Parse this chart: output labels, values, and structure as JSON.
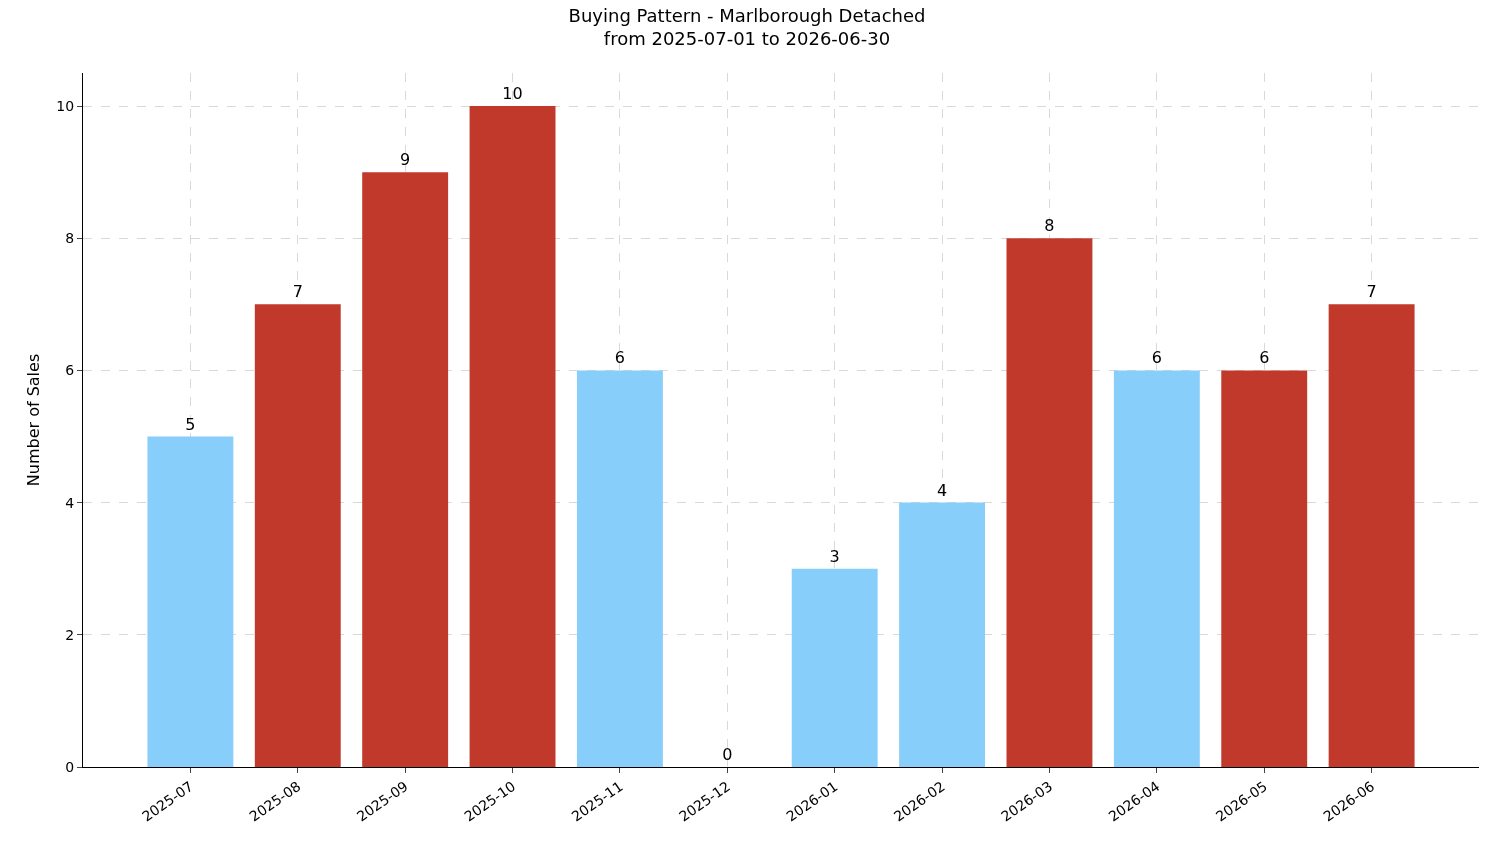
{
  "chart_data": {
    "type": "bar",
    "title": "Buying Pattern - Marlborough Detached",
    "subtitle": "from 2025-07-01 to 2026-06-30",
    "ylabel": "Number of Sales",
    "categories": [
      "2025-07",
      "2025-08",
      "2025-09",
      "2025-10",
      "2025-11",
      "2025-12",
      "2026-01",
      "2026-02",
      "2026-03",
      "2026-04",
      "2026-05",
      "2026-06"
    ],
    "values": [
      5,
      7,
      9,
      10,
      6,
      0,
      3,
      4,
      8,
      6,
      6,
      7
    ],
    "colors": [
      "#87cefa",
      "#c0392b",
      "#c0392b",
      "#c0392b",
      "#87cefa",
      "#87cefa",
      "#87cefa",
      "#87cefa",
      "#c0392b",
      "#87cefa",
      "#c0392b",
      "#c0392b"
    ],
    "ylim": [
      0,
      10.5
    ],
    "yticks": [
      0,
      2,
      4,
      6,
      8,
      10
    ],
    "grid": true,
    "data_labels": true
  }
}
